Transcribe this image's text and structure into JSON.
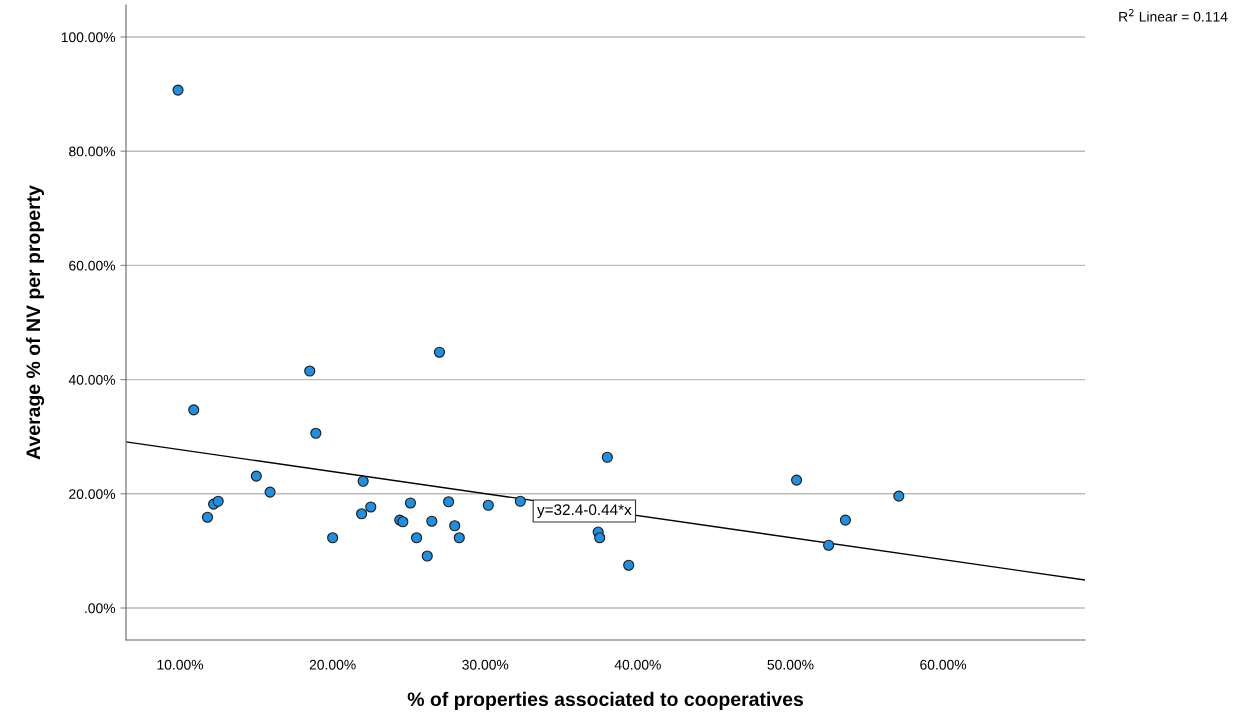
{
  "chart_data": {
    "type": "scatter",
    "xlabel": "% of properties associated to cooperatives",
    "ylabel": "Average % of NV per property",
    "x": [
      9.87,
      10.9,
      11.8,
      12.2,
      12.5,
      15.0,
      15.9,
      18.5,
      18.9,
      20.0,
      21.9,
      22.0,
      22.5,
      24.4,
      24.6,
      25.1,
      25.5,
      26.2,
      26.5,
      27.0,
      27.6,
      28.0,
      28.3,
      30.2,
      32.3,
      38.0,
      37.4,
      37.5,
      39.4,
      50.4,
      52.5,
      53.6,
      57.1
    ],
    "series": [
      {
        "color": "#1e8fe1",
        "marker": "circle",
        "values": [
          90.7,
          34.7,
          15.9,
          18.2,
          18.7,
          23.1,
          20.3,
          41.5,
          30.6,
          12.3,
          16.5,
          22.2,
          17.7,
          15.4,
          15.1,
          18.4,
          12.3,
          9.1,
          15.2,
          44.8,
          18.6,
          14.4,
          12.3,
          18.0,
          18.7,
          26.4,
          13.3,
          12.3,
          7.5,
          22.4,
          11.0,
          15.4,
          19.6
        ]
      },
      {
        "type": "line",
        "color": "#000000",
        "marker": "none",
        "line_style": "solid",
        "x": [
          6.46,
          69.3
        ],
        "values": [
          29.1,
          4.9
        ]
      }
    ],
    "xlim": [
      6.46,
      69.3
    ],
    "ylim": [
      -5.6,
      105.6
    ],
    "xticks": [
      {
        "value": 10,
        "label": "10.00%"
      },
      {
        "value": 20,
        "label": "20.00%"
      },
      {
        "value": 30,
        "label": "30.00%"
      },
      {
        "value": 40,
        "label": "40.00%"
      },
      {
        "value": 50,
        "label": "50.00%"
      },
      {
        "value": 60,
        "label": "60.00%"
      }
    ],
    "yticks": [
      {
        "value": 0,
        "label": ".00%"
      },
      {
        "value": 20,
        "label": "20.00%"
      },
      {
        "value": 40,
        "label": "40.00%"
      },
      {
        "value": 60,
        "label": "60.00%"
      },
      {
        "value": 80,
        "label": "80.00%"
      },
      {
        "value": 100,
        "label": "100.00%"
      }
    ],
    "grid": "y",
    "legend": false,
    "annotations": [
      "y=32.4-0.44*x",
      "R$^{2}$ Linear = 0.114"
    ]
  }
}
